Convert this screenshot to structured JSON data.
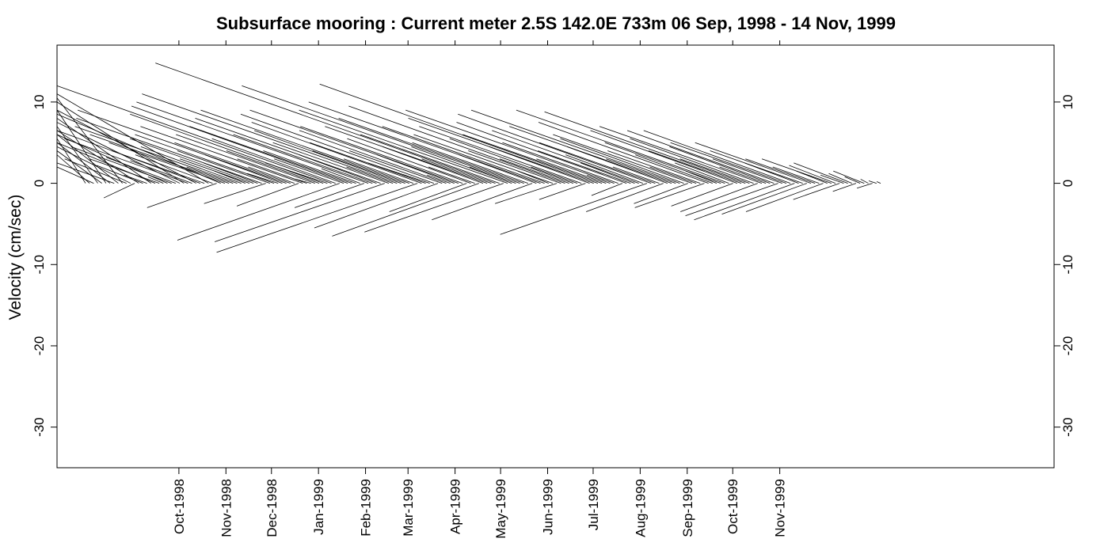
{
  "chart_data": {
    "type": "stick",
    "title": "Subsurface mooring : Current meter  2.5S 142.0E   733m  06 Sep, 1998 - 14 Nov, 1999",
    "ylabel": "Velocity (cm/sec)",
    "xlabel": "",
    "ylim": [
      -35,
      17
    ],
    "yticks": [
      10,
      0,
      -10,
      -20,
      -30
    ],
    "y_tick_labels": [
      "10",
      "0",
      "-10",
      "-20",
      "-30"
    ],
    "x_tick_labels": [
      "Oct-1998",
      "Nov-1998",
      "Dec-1998",
      "Jan-1999",
      "Feb-1999",
      "Mar-1999",
      "Apr-1999",
      "May-1999",
      "Jun-1999",
      "Jul-1999",
      "Aug-1999",
      "Sep-1999",
      "Oct-1999",
      "Nov-1999"
    ],
    "grid": false,
    "series": [
      {
        "description_unit": "daily current vector sticks (u, v) in cm/sec",
        "start_date": "1998-09-06",
        "v": [
          5.5,
          3.5,
          2.0,
          7.0,
          4.0,
          9.0,
          5.0,
          2.5,
          6.0,
          10.5,
          3.0,
          4.5,
          -1.8,
          6.5,
          2.2,
          1.0,
          8.0,
          5.0,
          3.0,
          0.8,
          6.0,
          4.5,
          3.2,
          7.5,
          10.0,
          5.5,
          2.8,
          9.0,
          6.5,
          4.0,
          11.0,
          3.5,
          -3.0,
          8.5,
          5.0,
          6.0,
          2.0,
          7.0,
          4.5,
          1.5,
          3.0,
          5.5,
          2.5,
          8.0,
          -2.5,
          4.0,
          6.0,
          1.2,
          3.5,
          9.0,
          5.0,
          2.0,
          -2.8,
          7.0,
          3.0,
          0.5,
          6.0,
          4.0,
          8.5,
          2.5,
          12.0,
          5.5,
          -7.0,
          3.0,
          9.5,
          7.0,
          4.0,
          1.8,
          -3.0,
          10.0,
          6.0,
          3.5,
          8.0,
          -7.2,
          5.0,
          2.0,
          11.0,
          6.5,
          4.0,
          9.0,
          3.0,
          -8.5,
          7.5,
          5.0,
          2.5,
          8.5,
          -5.5,
          4.0,
          6.5,
          1.0,
          3.5,
          9.0,
          7.0,
          -3.5,
          5.5,
          2.0,
          -6.5,
          4.5,
          7.0,
          3.0,
          14.8,
          6.0,
          -6.0,
          9.0,
          4.5,
          2.0,
          12.0,
          8.0,
          5.0,
          -4.5,
          3.5,
          10.0,
          7.0,
          1.5,
          6.0,
          -2.5,
          4.0,
          9.5,
          3.0,
          5.5,
          2.0,
          7.0,
          -2.0,
          4.5,
          8.0,
          12.2,
          6.0,
          3.0,
          1.0,
          9.0,
          5.0,
          -1.5,
          7.5,
          4.0,
          2.5,
          6.5,
          3.5,
          -6.3,
          8.5,
          5.0,
          2.0,
          -3.5,
          4.5,
          7.0,
          3.0,
          9.0,
          5.5,
          -2.5,
          6.0,
          2.0,
          4.0,
          -3.0,
          7.5,
          3.5,
          1.5,
          5.0,
          9.0,
          2.5,
          -2.8,
          6.5,
          4.0,
          8.8,
          3.0,
          5.5,
          -3.5,
          7.0,
          2.0,
          4.5,
          6.5,
          -4.0,
          3.0,
          5.0,
          6.5,
          -4.5,
          2.5,
          4.0,
          -3.8,
          5.0,
          3.0,
          2.0,
          -3.5,
          1.5,
          3.0,
          2.2,
          -2.0,
          1.0,
          2.5,
          1.2,
          -1.0,
          0.8,
          1.5,
          0.5,
          -0.6,
          0.3,
          0.2
        ],
        "u": [
          -8,
          -6,
          -10,
          -14,
          -12,
          -18,
          -9,
          -11,
          -15,
          -25,
          -8,
          -13,
          -4,
          -20,
          -6,
          -3,
          -22,
          -14,
          -9,
          -2,
          -18,
          -13,
          -9,
          -22,
          -30,
          -16,
          -8,
          -27,
          -20,
          -12,
          -33,
          -10,
          -9,
          -26,
          -15,
          -18,
          -6,
          -21,
          -13,
          -4,
          -9,
          -16,
          -7,
          -24,
          -8,
          -12,
          -18,
          -4,
          -10,
          -27,
          -15,
          -6,
          -8,
          -21,
          -9,
          -2,
          -18,
          -12,
          -25,
          -8,
          -36,
          -16,
          -21,
          -9,
          -28,
          -21,
          -12,
          -5,
          -9,
          -30,
          -18,
          -10,
          -24,
          -22,
          -15,
          -6,
          -33,
          -19,
          -12,
          -27,
          -9,
          -26,
          -22,
          -15,
          -8,
          -25,
          -16,
          -12,
          -19,
          -3,
          -10,
          -27,
          -21,
          -10,
          -16,
          -6,
          -19,
          -13,
          -21,
          -9,
          -44,
          -18,
          -18,
          -27,
          -13,
          -6,
          -36,
          -24,
          -15,
          -13,
          -10,
          -30,
          -21,
          -4,
          -18,
          -8,
          -12,
          -28,
          -9,
          -16,
          -6,
          -21,
          -6,
          -13,
          -24,
          -36,
          -18,
          -9,
          -3,
          -27,
          -15,
          -4,
          -22,
          -12,
          -7,
          -19,
          -10,
          -19,
          -25,
          -15,
          -6,
          -10,
          -13,
          -21,
          -9,
          -27,
          -16,
          -7,
          -18,
          -6,
          -12,
          -9,
          -22,
          -10,
          -4,
          -15,
          -27,
          -7,
          -8,
          -19,
          -12,
          -26,
          -9,
          -16,
          -10,
          -21,
          -6,
          -13,
          -19,
          -12,
          -9,
          -15,
          -19,
          -13,
          -7,
          -12,
          -11,
          -15,
          -9,
          -6,
          -10,
          -4,
          -9,
          -6,
          -6,
          -3,
          -7,
          -3,
          -3,
          -2,
          -4,
          -1,
          -2,
          -1,
          -0.5
        ]
      }
    ]
  }
}
